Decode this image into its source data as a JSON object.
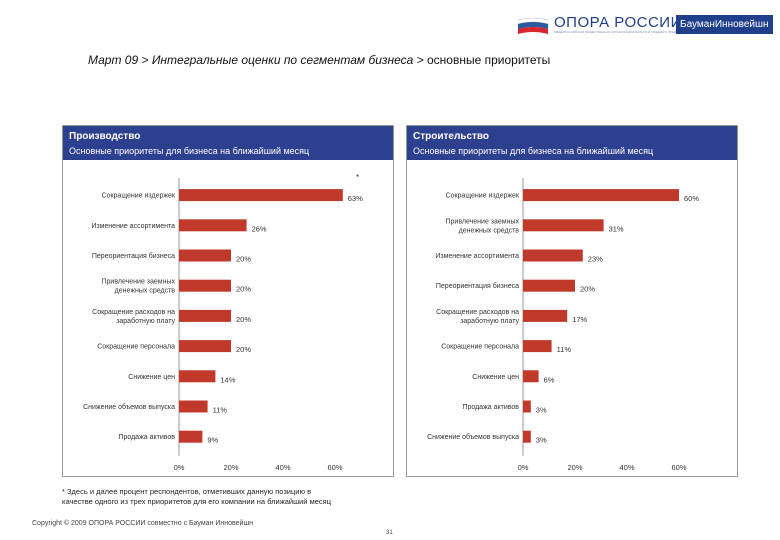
{
  "header": {
    "org_name": "ОПОРА РОССИИ",
    "org_subtitle": "ОБЩЕРОССИЙСКАЯ ОБЩЕСТВЕННАЯ ОРГАНИЗАЦИЯ МАЛОГО И СРЕДНЕГО ПРЕДПРИНИМАТЕЛЬСТВА",
    "partner_name": "БауманИнновейшн",
    "flag_colors": [
      "#ffffff",
      "#2c5aa0",
      "#d7262e"
    ]
  },
  "title": {
    "prefix": "Март 09 > Интегральные оценки по сегментам бизнеса > ",
    "suffix": "основные приоритеты"
  },
  "colors": {
    "header_bg": "#2d3f8f",
    "bar": "#c0392b",
    "brand": "#1f3f8a"
  },
  "panels": [
    {
      "title": "Производство",
      "subtitle": "Основные приоритеты для бизнеса на ближайший месяц",
      "note_marker": "*"
    },
    {
      "title": "Строительство",
      "subtitle": "Основные приоритеты для бизнеса на ближайший месяц",
      "note_marker": ""
    }
  ],
  "chart_data": [
    {
      "type": "bar",
      "orientation": "horizontal",
      "title": "Производство",
      "categories": [
        "Сокращение издержек",
        "Изменение ассортимента",
        "Переориентация бизнеса",
        "Привлечение заемных денежных средств",
        "Сокращение расходов на заработную плату",
        "Сокращение персонала",
        "Снижение цен",
        "Снижение объемов выпуска",
        "Продажа активов"
      ],
      "values": [
        63,
        26,
        20,
        20,
        20,
        20,
        14,
        11,
        9
      ],
      "value_labels": [
        "63%",
        "26%",
        "20%",
        "20%",
        "20%",
        "20%",
        "14%",
        "11%",
        "9%"
      ],
      "xlim": [
        0,
        60
      ],
      "xticks": [
        "0%",
        "20%",
        "40%",
        "60%"
      ],
      "xtick_values": [
        0,
        20,
        40,
        60
      ]
    },
    {
      "type": "bar",
      "orientation": "horizontal",
      "title": "Строительство",
      "categories": [
        "Сокращение издержек",
        "Привлечение заемных денежных средств",
        "Изменение ассортимента",
        "Переориентация бизнеса",
        "Сокращение расходов на заработную плату",
        "Сокращение персонала",
        "Снижение цен",
        "Продажа активов",
        "Снижение объемов выпуска"
      ],
      "values": [
        60,
        31,
        23,
        20,
        17,
        11,
        6,
        3,
        3
      ],
      "value_labels": [
        "60%",
        "31%",
        "23%",
        "20%",
        "17%",
        "11%",
        "6%",
        "3%",
        "3%"
      ],
      "xlim": [
        0,
        60
      ],
      "xticks": [
        "0%",
        "20%",
        "40%",
        "60%"
      ],
      "xtick_values": [
        0,
        20,
        40,
        60
      ]
    }
  ],
  "footnote": {
    "line1": "* Здесь и далее процент респондентов, отметивших данную позицию в",
    "line2": "качестве одного из трех приоритетов для его компании на ближайший месяц"
  },
  "copyright": "Copyright © 2009  ОПОРА РОССИИ совместно с Бауман Инновейшн",
  "page_number": "31"
}
